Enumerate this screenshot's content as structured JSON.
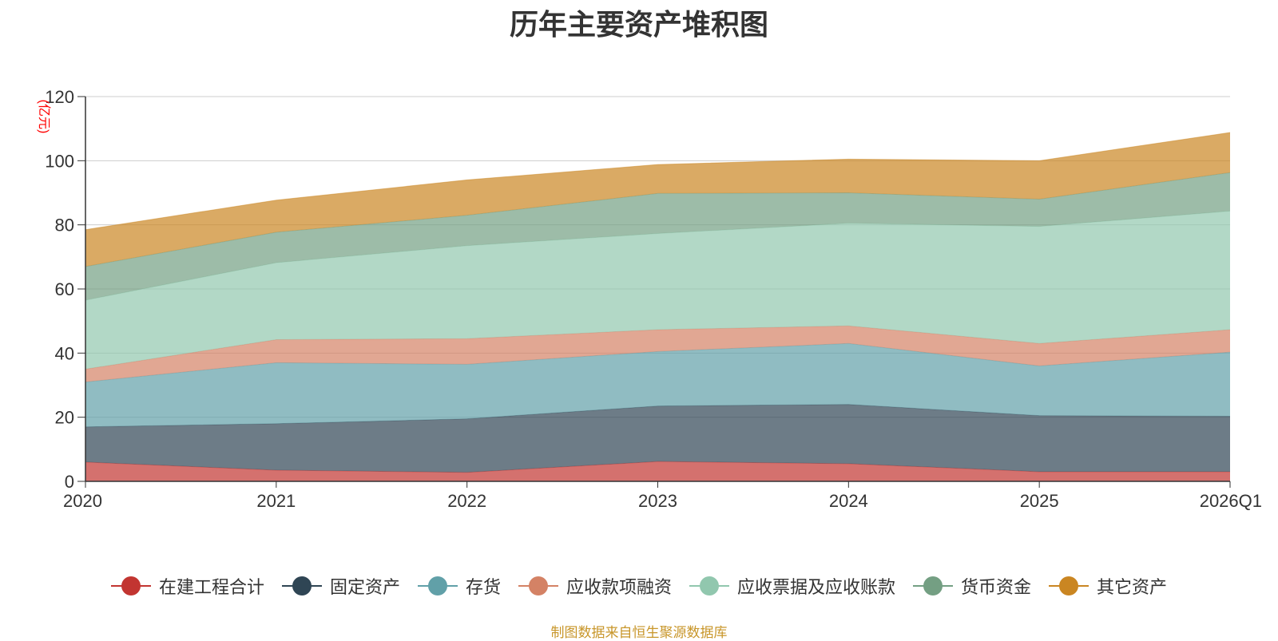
{
  "chart_data": {
    "type": "area",
    "stacked": true,
    "title": "历年主要资产堆积图",
    "ylabel": "(亿元)",
    "xlabel": "",
    "categories": [
      "2020",
      "2021",
      "2022",
      "2023",
      "2024",
      "2025",
      "2026Q1"
    ],
    "ylim": [
      0,
      120
    ],
    "yticks": [
      0,
      20,
      40,
      60,
      80,
      100,
      120
    ],
    "grid": true,
    "legend_position": "bottom",
    "series": [
      {
        "name": "在建工程合计",
        "color": "#c23531",
        "values": [
          6,
          3.5,
          2.8,
          6.2,
          5.5,
          3,
          3
        ]
      },
      {
        "name": "固定资产",
        "color": "#2f4554",
        "values": [
          11,
          14.5,
          16.7,
          17.3,
          18.5,
          17.5,
          17.3
        ]
      },
      {
        "name": "存货",
        "color": "#61a0a8",
        "values": [
          14,
          19,
          17,
          17,
          19,
          15.5,
          20
        ]
      },
      {
        "name": "应收款项融资",
        "color": "#d48265",
        "values": [
          4,
          7.2,
          8,
          6.8,
          5.5,
          7,
          7
        ]
      },
      {
        "name": "应收票据及应收账款",
        "color": "#91c7ae",
        "values": [
          21.5,
          24,
          29,
          30,
          32,
          36.5,
          37
        ]
      },
      {
        "name": "货币资金",
        "color": "#749f83",
        "values": [
          10.5,
          9.5,
          9.5,
          12.5,
          9.5,
          8.5,
          12
        ]
      },
      {
        "name": "其它资产",
        "color": "#ca8622",
        "values": [
          11.5,
          10,
          11,
          9,
          10.5,
          12,
          12.5
        ]
      }
    ]
  },
  "source_note": "制图数据来自恒生聚源数据库"
}
